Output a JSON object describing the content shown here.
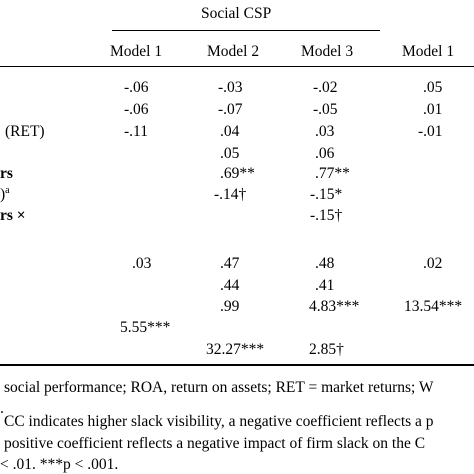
{
  "header": {
    "group_title": "Social CSP",
    "columns": [
      "Model 1",
      "Model 2",
      "Model 3",
      "Model 1"
    ]
  },
  "rows": [
    {
      "label": "",
      "label_sup": "",
      "label_tail": "",
      "cells": [
        "-.06",
        "-.03",
        "-.02",
        ".05"
      ]
    },
    {
      "label": "",
      "label_sup": "",
      "label_tail": "",
      "cells": [
        "-.06",
        "-.07",
        "-.05",
        ".01"
      ]
    },
    {
      "label": "(RET)",
      "label_sup": "",
      "label_tail": "",
      "cells": [
        "-.11",
        ".04",
        ".03",
        "-.01"
      ]
    },
    {
      "label": "",
      "label_sup": "",
      "label_tail": "",
      "cells": [
        "",
        ".05",
        ".06",
        ""
      ]
    },
    {
      "label": "rs",
      "label_sup": "",
      "label_tail": "",
      "cells": [
        "",
        ".69**",
        ".77**",
        ""
      ]
    },
    {
      "label": ")",
      "label_sup": "a",
      "label_tail": "",
      "cells": [
        "",
        "-.14†",
        "-.15*",
        ""
      ]
    },
    {
      "label": "rs ×",
      "label_sup": "",
      "label_tail": "",
      "cells": [
        "",
        "",
        "-.15†",
        ""
      ]
    },
    {
      "label": "",
      "label_sup": "",
      "label_tail": "",
      "cells": [
        ".03",
        ".47",
        ".48",
        ".02"
      ]
    },
    {
      "label": "",
      "label_sup": "",
      "label_tail": "",
      "cells": [
        "",
        ".44",
        ".41",
        ""
      ]
    },
    {
      "label": "",
      "label_sup": "",
      "label_tail": "",
      "cells": [
        "",
        ".99",
        "4.83***",
        "13.54***"
      ]
    },
    {
      "label": "",
      "label_sup": "",
      "label_tail": "",
      "cells": [
        "5.55***",
        "",
        "",
        ""
      ]
    },
    {
      "label": "",
      "label_sup": "",
      "label_tail": "",
      "cells": [
        "",
        "32.27***",
        "2.85†",
        ""
      ]
    }
  ],
  "notes": [
    "social performance; ROA, return on assets; RET = market returns; W",
    "CC indicates higher slack visibility, a negative coefficient reflects a p",
    "positive coefficient reflects a negative impact of firm slack on the C",
    "< .01. ***p < .001."
  ]
}
